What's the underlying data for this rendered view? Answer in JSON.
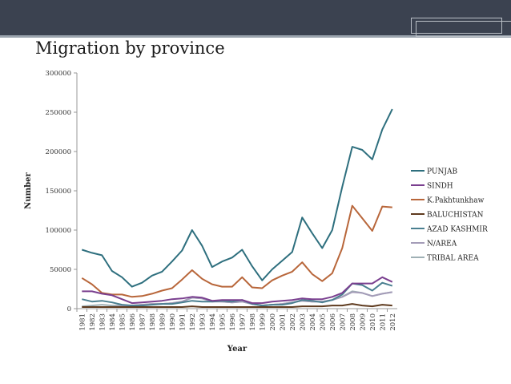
{
  "slide": {
    "title": "Migration by province"
  },
  "chart_data": {
    "type": "line",
    "title": "",
    "xlabel": "Year",
    "ylabel": "Number",
    "ylim": [
      0,
      300000
    ],
    "yticks": [
      0,
      50000,
      100000,
      150000,
      200000,
      250000,
      300000
    ],
    "grid": false,
    "legend": "right",
    "x": [
      "1981",
      "1982",
      "1983",
      "1984",
      "1985",
      "1986",
      "1987",
      "1988",
      "1989",
      "1990",
      "1991",
      "1992",
      "1993",
      "1994",
      "1995",
      "1996",
      "1997",
      "1998",
      "1999",
      "2000",
      "2001",
      "2002",
      "2003",
      "2004",
      "2005",
      "2006",
      "2007",
      "2008",
      "2009",
      "2010",
      "2011",
      "2012"
    ],
    "series": [
      {
        "name": "PUNJAB",
        "color": "#2e6f7e",
        "values": [
          75000,
          71000,
          68000,
          48000,
          40000,
          28000,
          33000,
          42000,
          47000,
          60000,
          74000,
          100000,
          80000,
          53000,
          60000,
          65000,
          75000,
          54000,
          36000,
          50000,
          61000,
          72000,
          116000,
          96000,
          77000,
          100000,
          155000,
          206000,
          202000,
          190000,
          228000,
          254000
        ]
      },
      {
        "name": "SINDH",
        "color": "#7a3f8f",
        "values": [
          22000,
          22000,
          19000,
          17000,
          12000,
          7000,
          8000,
          9000,
          10000,
          12000,
          13000,
          15000,
          14000,
          10000,
          11000,
          11000,
          11000,
          7000,
          7000,
          9000,
          10000,
          11000,
          13000,
          12000,
          12000,
          15000,
          20000,
          32000,
          32000,
          32000,
          40000,
          34000
        ]
      },
      {
        "name": "K.Pakhtunkhaw",
        "color": "#b8663a",
        "values": [
          39000,
          31000,
          20000,
          18000,
          18000,
          15000,
          16000,
          19000,
          23000,
          26000,
          37000,
          49000,
          38000,
          31000,
          28000,
          28000,
          40000,
          27000,
          26000,
          36000,
          42000,
          47000,
          59000,
          44000,
          35000,
          45000,
          77000,
          131000,
          115000,
          99000,
          130000,
          129000
        ]
      },
      {
        "name": "BALUCHISTAN",
        "color": "#5e3a1e",
        "values": [
          2000,
          2000,
          2000,
          2000,
          2000,
          2000,
          2000,
          2000,
          2000,
          2000,
          2000,
          3000,
          2000,
          2000,
          2000,
          2000,
          2000,
          2000,
          2000,
          2000,
          2000,
          2000,
          3000,
          3000,
          3000,
          4000,
          4000,
          6000,
          4000,
          3000,
          5000,
          4000
        ]
      },
      {
        "name": "AZAD KASHMIR",
        "color": "#4a7f90",
        "values": [
          12000,
          9000,
          10000,
          8000,
          5000,
          4000,
          4000,
          5000,
          6000,
          6000,
          8000,
          10000,
          9000,
          9000,
          10000,
          9000,
          11000,
          6000,
          4000,
          5000,
          5000,
          7000,
          11000,
          10000,
          8000,
          11000,
          18000,
          32000,
          30000,
          23000,
          33000,
          29000
        ]
      },
      {
        "name": "N/AREA",
        "color": "#a49cb8",
        "values": [
          2000,
          2000,
          2000,
          2000,
          3000,
          4000,
          5000,
          6000,
          6000,
          7000,
          9000,
          14000,
          13000,
          9000,
          9000,
          8000,
          9000,
          6000,
          4000,
          5000,
          6000,
          8000,
          10000,
          9000,
          9000,
          11000,
          15000,
          21000,
          20000,
          16000,
          19000,
          21000
        ]
      },
      {
        "name": "TRIBAL AREA",
        "color": "#9fb0b5",
        "values": [
          3000,
          4000,
          5000,
          4000,
          4000,
          4000,
          5000,
          6000,
          6000,
          7000,
          9000,
          14000,
          13000,
          10000,
          9000,
          8000,
          9000,
          6000,
          4000,
          5000,
          6000,
          8000,
          10000,
          9000,
          9000,
          11000,
          15000,
          22000,
          20000,
          16000,
          19000,
          21000
        ]
      }
    ]
  }
}
